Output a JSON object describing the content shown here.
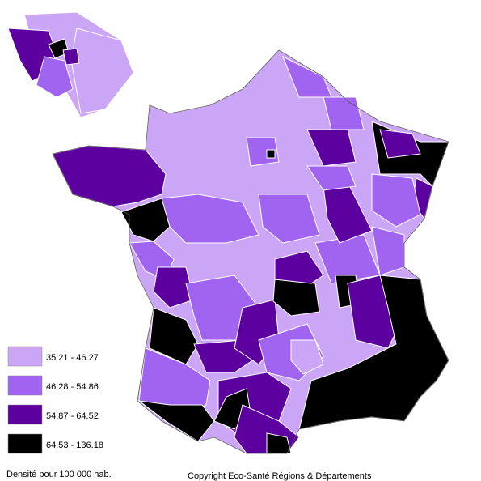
{
  "legend": {
    "items": [
      {
        "label": "35.21 - 46.27",
        "color": "#cba6f7"
      },
      {
        "label": "46.28 - 54.86",
        "color": "#a064f0"
      },
      {
        "label": "54.87 - 64.52",
        "color": "#5c00a0"
      },
      {
        "label": "64.53 - 136.18",
        "color": "#000000"
      }
    ]
  },
  "footnote": "Densité pour 100 000 hab.",
  "copyright": "Copyright Eco-Santé Régions & Départements"
}
